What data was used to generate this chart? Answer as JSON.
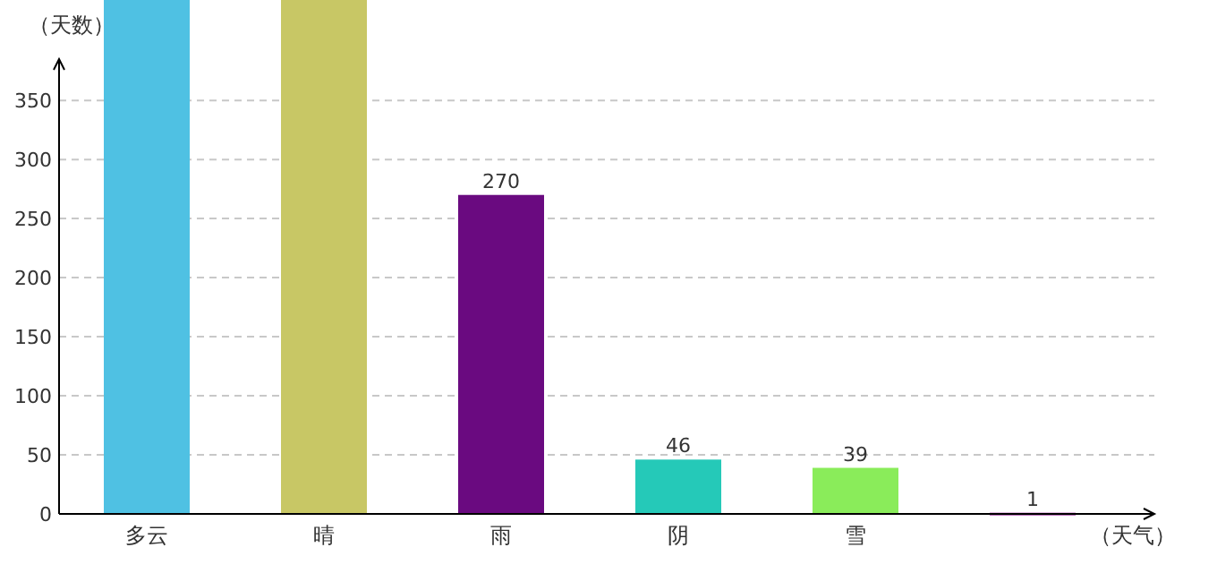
{
  "chart_data": {
    "type": "bar",
    "xlabel": "（天气）",
    "ylabel": "（天数）",
    "categories": [
      "多云",
      "晴",
      "雨",
      "阴",
      "雪",
      null
    ],
    "values": [
      435,
      435,
      270,
      46,
      39,
      1
    ],
    "colors": [
      "#4fc1e3",
      "#c8c765",
      "#6a0a80",
      "#25c9b8",
      "#8aec5a",
      "#a02fa0"
    ],
    "value_labels": [
      null,
      null,
      "270",
      "46",
      "39",
      "1"
    ],
    "ylim": [
      0,
      435
    ],
    "yticks": [
      0,
      50,
      100,
      150,
      200,
      250,
      300,
      350
    ],
    "grid": "y"
  }
}
